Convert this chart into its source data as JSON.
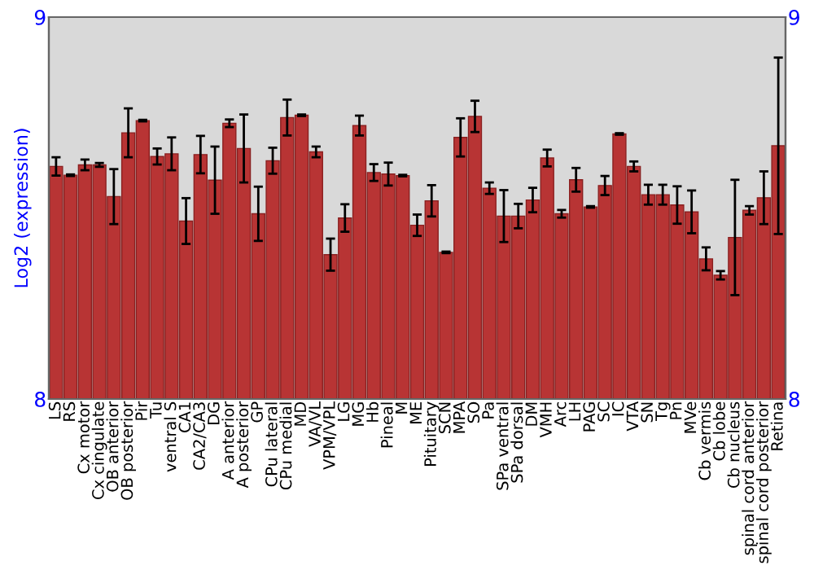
{
  "chart_data": {
    "type": "bar",
    "ylabel": "Log2 (expression)",
    "categories": [
      "LS",
      "RS",
      "Cx motor",
      "Cx cingulate",
      "OB anterior",
      "OB posterior",
      "Pir",
      "Tu",
      "ventral S",
      "CA1",
      "CA2/CA3",
      "DG",
      "A anterior",
      "A posterior",
      "GP",
      "CPu lateral",
      "CPu medial",
      "MD",
      "VA/VL",
      "VPM/VPL",
      "LG",
      "MG",
      "Hb",
      "Pineal",
      "M",
      "ME",
      "Pituitary",
      "SCN",
      "MPA",
      "SO",
      "Pa",
      "SPa ventral",
      "SPa dorsal",
      "DM",
      "VMH",
      "Arc",
      "LH",
      "PAG",
      "SC",
      "IC",
      "VTA",
      "SN",
      "Tg",
      "Pn",
      "MVe",
      "Cb vermis",
      "Cb lobe",
      "Cb nucleus",
      "spinal cord anterior",
      "spinal cord posterior",
      "Retina"
    ],
    "values": [
      8.609,
      8.586,
      8.613,
      8.613,
      8.53,
      8.697,
      8.729,
      8.635,
      8.642,
      8.466,
      8.64,
      8.573,
      8.722,
      8.656,
      8.485,
      8.624,
      8.737,
      8.743,
      8.647,
      8.378,
      8.474,
      8.716,
      8.593,
      8.589,
      8.585,
      8.455,
      8.519,
      8.384,
      8.685,
      8.74,
      8.552,
      8.479,
      8.479,
      8.521,
      8.631,
      8.485,
      8.574,
      8.503,
      8.559,
      8.694,
      8.609,
      8.535,
      8.535,
      8.508,
      8.49,
      8.367,
      8.324,
      8.423,
      8.494,
      8.527,
      8.663
    ],
    "errors": [
      0.024,
      0.002,
      0.014,
      0.005,
      0.072,
      0.064,
      0.002,
      0.021,
      0.043,
      0.06,
      0.049,
      0.088,
      0.01,
      0.089,
      0.071,
      0.034,
      0.047,
      0.002,
      0.014,
      0.042,
      0.036,
      0.026,
      0.022,
      0.03,
      0.002,
      0.028,
      0.041,
      0.002,
      0.05,
      0.041,
      0.015,
      0.068,
      0.032,
      0.032,
      0.022,
      0.01,
      0.031,
      0.002,
      0.025,
      0.002,
      0.013,
      0.026,
      0.026,
      0.049,
      0.056,
      0.03,
      0.011,
      0.151,
      0.011,
      0.069,
      0.231
    ],
    "color": "#b83434",
    "ylim": [
      8,
      9
    ],
    "yticks": [
      8,
      9
    ],
    "y2lim": [
      8,
      9
    ],
    "y2ticks": [
      8,
      9
    ],
    "grid": false
  }
}
